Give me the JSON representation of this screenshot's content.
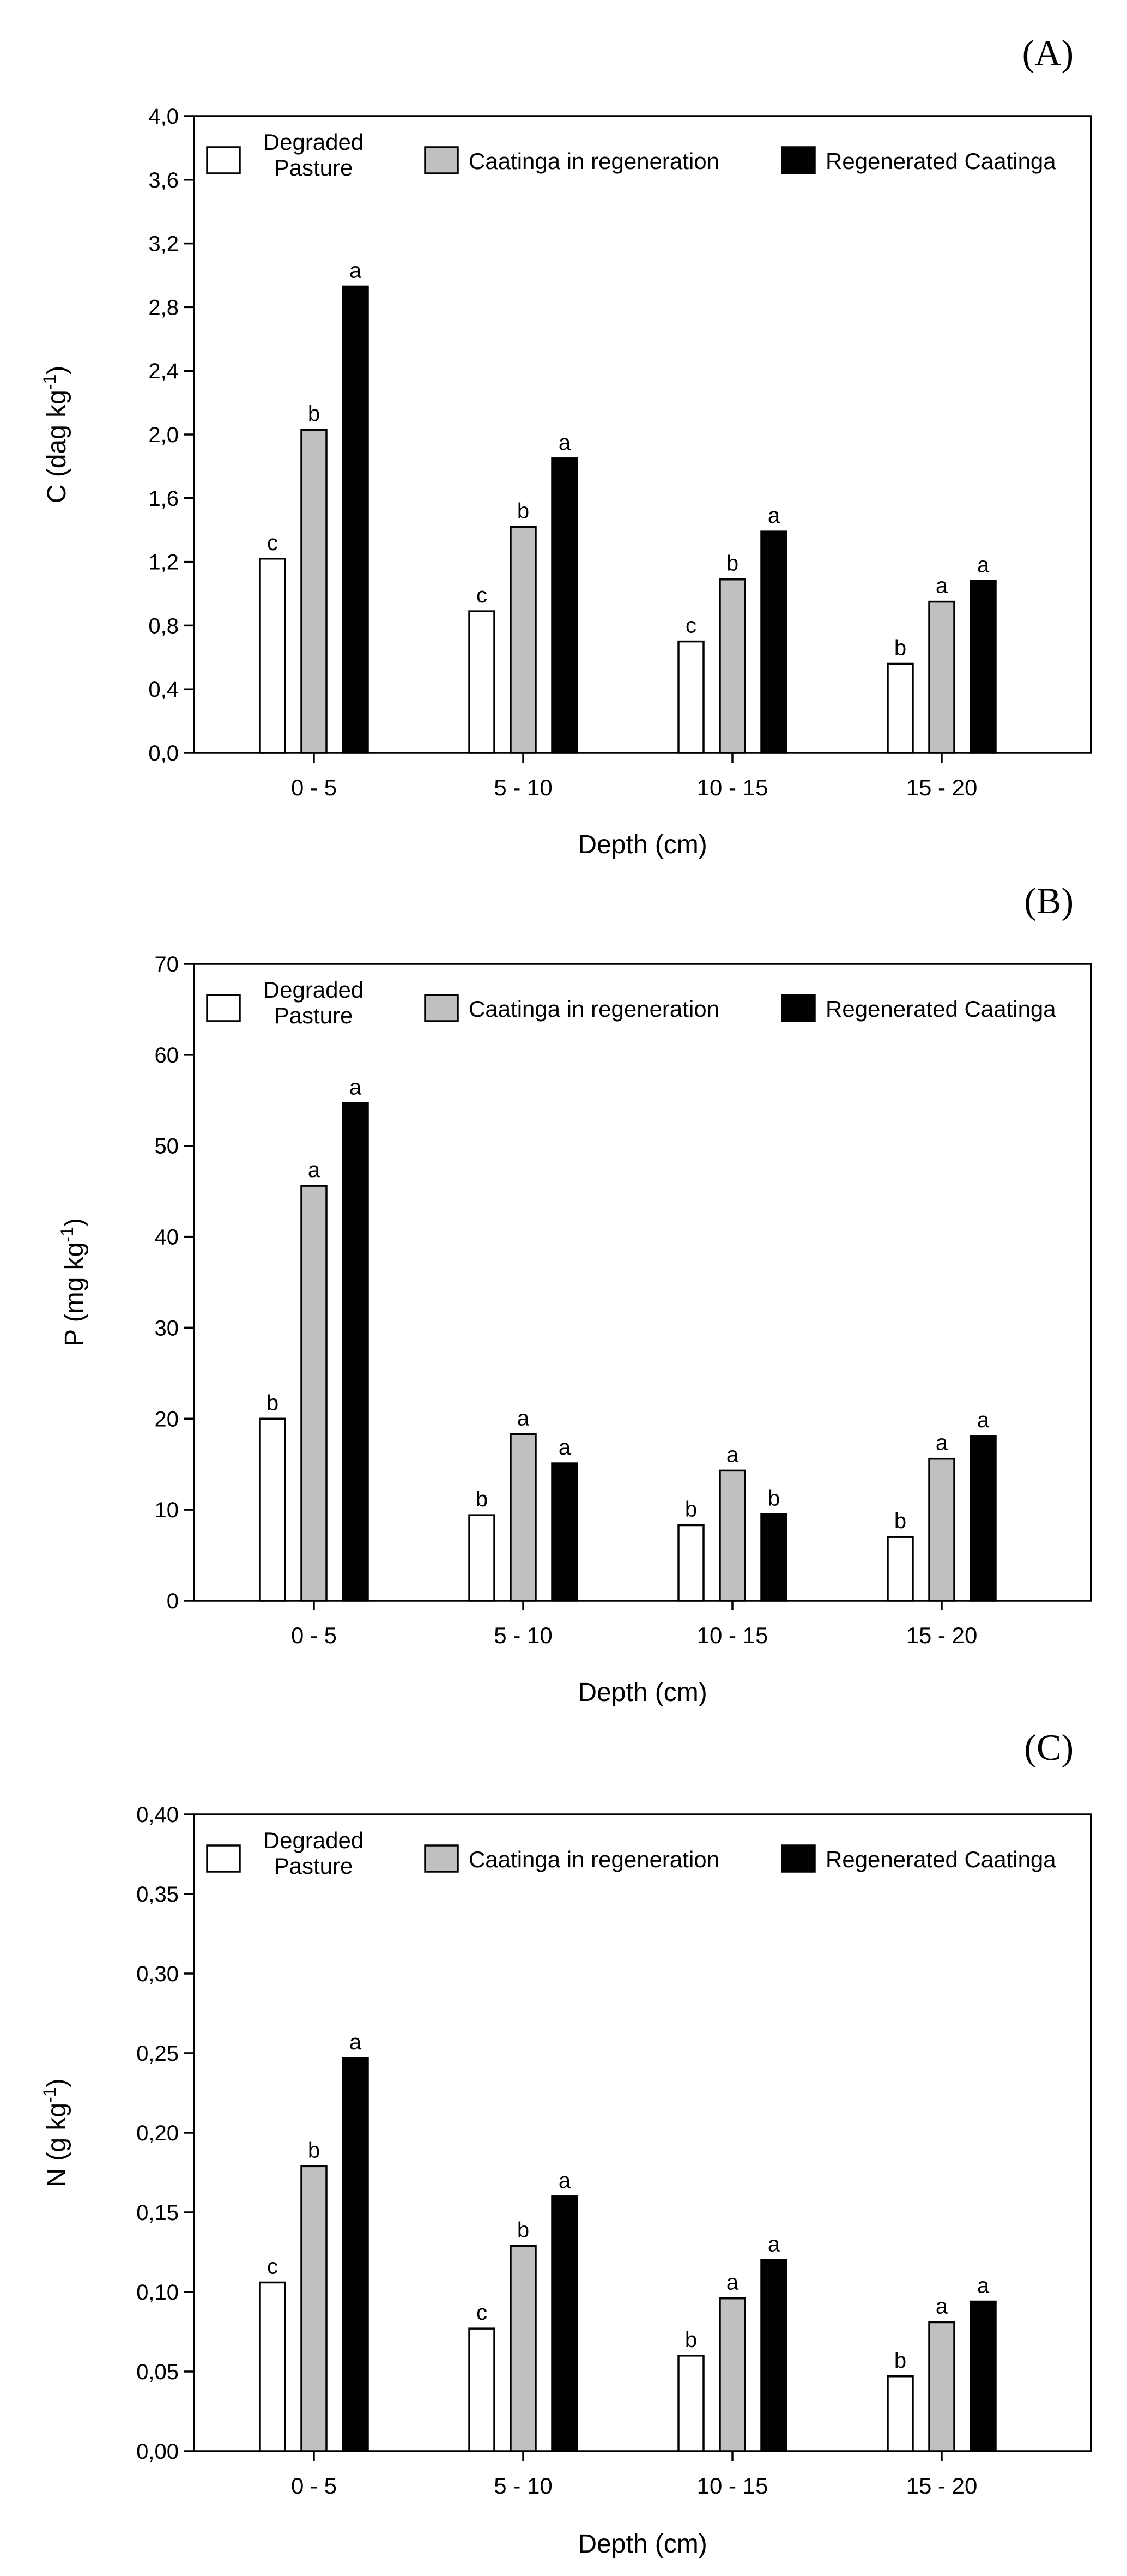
{
  "series_styles": [
    {
      "key": "degraded",
      "fill": "#ffffff"
    },
    {
      "key": "regeneration",
      "fill": "#c0c0c0"
    },
    {
      "key": "regenerated",
      "fill": "#000000"
    }
  ],
  "chart_data": [
    {
      "type": "bar",
      "panel_label": "(A)",
      "categories": [
        "0 - 5",
        "5 - 10",
        "10 - 15",
        "15 - 20"
      ],
      "xlabel": "Depth (cm)",
      "ylabel_main": "C (dag kg",
      "ylabel_sup": "-1",
      "ylabel_close": ")",
      "ylim": [
        0,
        4.0
      ],
      "yticks": [
        "0,0",
        "0,4",
        "0,8",
        "1,2",
        "1,6",
        "2,0",
        "2,4",
        "2,8",
        "3,2",
        "3,6",
        "4,0"
      ],
      "legend": {
        "degraded_line1": "Degraded",
        "degraded_line2": "Pasture",
        "regeneration": "Caatinga in regeneration",
        "regenerated": "Regenerated Caatinga"
      },
      "series": [
        {
          "values": [
            1.22,
            0.89,
            0.7,
            0.56
          ],
          "letters": [
            "c",
            "c",
            "c",
            "b"
          ]
        },
        {
          "values": [
            2.03,
            1.42,
            1.09,
            0.95
          ],
          "letters": [
            "b",
            "b",
            "b",
            "a"
          ]
        },
        {
          "values": [
            2.93,
            1.85,
            1.39,
            1.08
          ],
          "letters": [
            "a",
            "a",
            "a",
            "a"
          ]
        }
      ]
    },
    {
      "type": "bar",
      "panel_label": "(B)",
      "categories": [
        "0 - 5",
        "5 - 10",
        "10 - 15",
        "15 - 20"
      ],
      "xlabel": "Depth (cm)",
      "ylabel_main": "P (mg kg",
      "ylabel_sup": "-1",
      "ylabel_close": ")",
      "ylim": [
        0,
        70
      ],
      "yticks": [
        "0",
        "10",
        "20",
        "30",
        "40",
        "50",
        "60",
        "70"
      ],
      "legend": {
        "degraded_line1": "Degraded",
        "degraded_line2": "Pasture",
        "regeneration": "Caatinga in regeneration",
        "regenerated": "Regenerated Caatinga"
      },
      "series": [
        {
          "values": [
            20.0,
            9.4,
            8.3,
            7.0
          ],
          "letters": [
            "b",
            "b",
            "b",
            "b"
          ]
        },
        {
          "values": [
            45.6,
            18.3,
            14.3,
            15.6
          ],
          "letters": [
            "a",
            "a",
            "a",
            "a"
          ]
        },
        {
          "values": [
            54.7,
            15.1,
            9.5,
            18.1
          ],
          "letters": [
            "a",
            "a",
            "b",
            "a"
          ]
        }
      ]
    },
    {
      "type": "bar",
      "panel_label": "(C)",
      "categories": [
        "0 - 5",
        "5 - 10",
        "10 - 15",
        "15 - 20"
      ],
      "xlabel": "Depth (cm)",
      "ylabel_main": "N (g kg",
      "ylabel_sup": "-1",
      "ylabel_close": ")",
      "ylim": [
        0,
        0.4
      ],
      "yticks": [
        "0,00",
        "0,05",
        "0,10",
        "0,15",
        "0,20",
        "0,25",
        "0,30",
        "0,35",
        "0,40"
      ],
      "legend": {
        "degraded_line1": "Degraded",
        "degraded_line2": "Pasture",
        "regeneration": "Caatinga in regeneration",
        "regenerated": "Regenerated Caatinga"
      },
      "series": [
        {
          "values": [
            0.106,
            0.077,
            0.06,
            0.047
          ],
          "letters": [
            "c",
            "c",
            "b",
            "b"
          ]
        },
        {
          "values": [
            0.179,
            0.129,
            0.096,
            0.081
          ],
          "letters": [
            "b",
            "b",
            "a",
            "a"
          ]
        },
        {
          "values": [
            0.247,
            0.16,
            0.12,
            0.094
          ],
          "letters": [
            "a",
            "a",
            "a",
            "a"
          ]
        }
      ]
    }
  ]
}
